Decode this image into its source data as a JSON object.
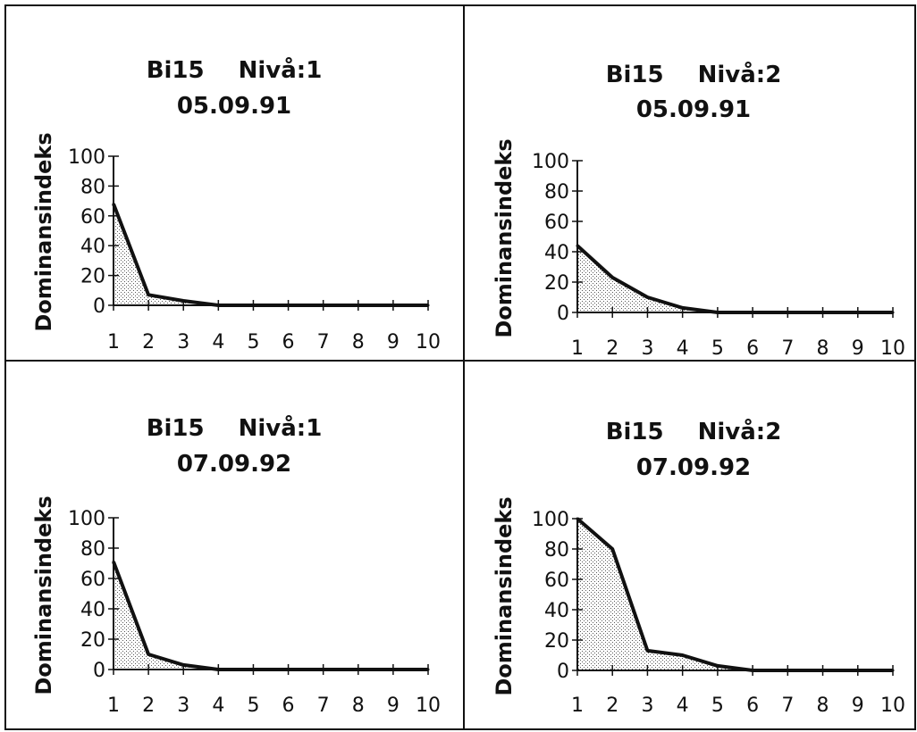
{
  "chart_data": [
    {
      "type": "area",
      "title_line1_site": "Bi15",
      "title_line1_level": "Nivå:1",
      "title_line2": "05.09.91",
      "ylabel": "Dominansindeks",
      "x": [
        1,
        2,
        3,
        4,
        5,
        6,
        7,
        8,
        9,
        10
      ],
      "values": [
        68,
        7,
        3,
        0,
        0,
        0,
        0,
        0,
        0,
        0
      ],
      "ylim": [
        0,
        100
      ],
      "yticks": [
        0,
        20,
        40,
        60,
        80,
        100
      ],
      "fill_pattern": "stippled",
      "grid": false
    },
    {
      "type": "area",
      "title_line1_site": "Bi15",
      "title_line1_level": "Nivå:2",
      "title_line2": "05.09.91",
      "ylabel": "Dominansindeks",
      "x": [
        1,
        2,
        3,
        4,
        5,
        6,
        7,
        8,
        9,
        10
      ],
      "values": [
        44,
        23,
        10,
        3,
        0,
        0,
        0,
        0,
        0,
        0
      ],
      "ylim": [
        0,
        100
      ],
      "yticks": [
        0,
        20,
        40,
        60,
        80,
        100
      ],
      "fill_pattern": "stippled",
      "grid": false
    },
    {
      "type": "area",
      "title_line1_site": "Bi15",
      "title_line1_level": "Nivå:1",
      "title_line2": "07.09.92",
      "ylabel": "Dominansindeks",
      "x": [
        1,
        2,
        3,
        4,
        5,
        6,
        7,
        8,
        9,
        10
      ],
      "values": [
        71,
        10,
        3,
        0,
        0,
        0,
        0,
        0,
        0,
        0
      ],
      "ylim": [
        0,
        100
      ],
      "yticks": [
        0,
        20,
        40,
        60,
        80,
        100
      ],
      "fill_pattern": "stippled",
      "grid": false
    },
    {
      "type": "area",
      "title_line1_site": "Bi15",
      "title_line1_level": "Nivå:2",
      "title_line2": "07.09.92",
      "ylabel": "Dominansindeks",
      "x": [
        1,
        2,
        3,
        4,
        5,
        6,
        7,
        8,
        9,
        10
      ],
      "values": [
        100,
        80,
        13,
        10,
        3,
        0,
        0,
        0,
        0,
        0
      ],
      "ylim": [
        0,
        100
      ],
      "yticks": [
        0,
        20,
        40,
        60,
        80,
        100
      ],
      "fill_pattern": "stippled",
      "grid": false
    }
  ]
}
